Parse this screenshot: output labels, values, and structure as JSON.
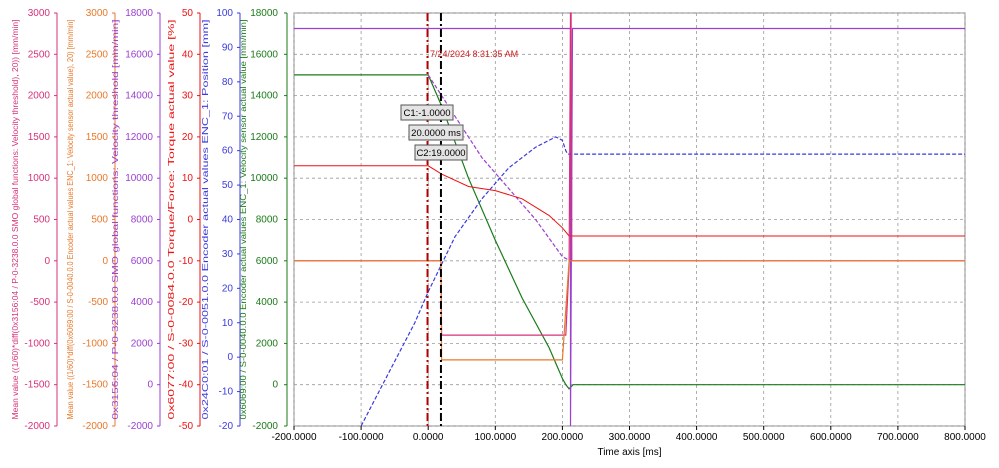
{
  "colors": {
    "pink": "#d6317a",
    "orange": "#e8782a",
    "purple": "#9b3fd0",
    "red": "#ee1111",
    "blue": "#3a3ae0",
    "green": "#1a7a1a",
    "cursor1": "#b00000",
    "cursor2": "#000000",
    "grid": "#9a9a9a",
    "timestamp": "#d02020"
  },
  "chart_data": {
    "type": "line",
    "xlabel": "Time axis [ms]",
    "xlim": [
      -200,
      800
    ],
    "xticks": [
      -200,
      -100,
      0,
      100,
      200,
      300,
      400,
      500,
      600,
      700,
      800
    ],
    "xtick_labels": [
      "-200.0000",
      "-100.0000",
      "0.0000",
      "100.0000",
      "200.0000",
      "300.0000",
      "400.0000",
      "500.0000",
      "600.0000",
      "700.0000",
      "800.0000"
    ],
    "axes": [
      {
        "id": "pink",
        "label": "Mean value ((1/60)*diff(0x3156:04 / P-0-3238.0.0 SMO global functions: Velocity threshold), 20)) [mm/min]",
        "min": -2000,
        "max": 3000,
        "ticks": [
          -2000,
          -1500,
          -1000,
          -500,
          0,
          500,
          1000,
          1500,
          2000,
          2500,
          3000
        ]
      },
      {
        "id": "orange",
        "label": "Mean value ((1/60)*diff(0x6069:00 / S-0-0040.0.0 Encoder actual values ENC_1: Velocity sensor actual value), 20) [mm/min]",
        "min": -2000,
        "max": 3000,
        "ticks": [
          -2000,
          -1500,
          -1000,
          -500,
          0,
          500,
          1000,
          1500,
          2000,
          2500,
          3000
        ]
      },
      {
        "id": "purple",
        "label": "0x3156:04 / P-0-3238.0.0 SMO global functions: Velocity threshold [mm/min]",
        "min": -2000,
        "max": 18000,
        "ticks": [
          -2000,
          0,
          2000,
          4000,
          6000,
          8000,
          10000,
          12000,
          14000,
          16000,
          18000
        ]
      },
      {
        "id": "red",
        "label": "0x6077:00 / S-0-0084.0.0 Torque/Force: Torque actual value [%]",
        "min": -50,
        "max": 50,
        "ticks": [
          -50,
          -40,
          -30,
          -20,
          -10,
          0,
          10,
          20,
          30,
          40,
          50
        ]
      },
      {
        "id": "blue",
        "label": "0x24C0:01 / S-0-0051.0.0 Encoder actual values ENC_1: Position [mm]",
        "min": -20,
        "max": 100,
        "ticks": [
          -20,
          -10,
          0,
          10,
          20,
          30,
          40,
          50,
          60,
          70,
          80,
          90,
          100
        ]
      },
      {
        "id": "green",
        "label": "0x6069:00 / S-0-0040.0.0 Encoder actual values ENC_1: Velocity sensor actual value [mm/min]",
        "min": -2000,
        "max": 18000,
        "ticks": [
          -2000,
          0,
          2000,
          4000,
          6000,
          8000,
          10000,
          12000,
          14000,
          16000,
          18000
        ]
      }
    ],
    "series": [
      {
        "axis": "green",
        "points": [
          [
            -200,
            15000
          ],
          [
            0,
            15000
          ],
          [
            20,
            13500
          ],
          [
            60,
            10000
          ],
          [
            100,
            7000
          ],
          [
            140,
            4200
          ],
          [
            180,
            1800
          ],
          [
            200,
            300
          ],
          [
            205,
            0
          ],
          [
            210,
            -200
          ],
          [
            216,
            0
          ],
          [
            800,
            0
          ]
        ]
      },
      {
        "axis": "purple",
        "points": [
          [
            -200,
            17250
          ],
          [
            212,
            17250
          ],
          [
            212,
            -2000
          ],
          [
            215,
            17250
          ],
          [
            800,
            17250
          ]
        ]
      },
      {
        "axis": "purple",
        "points": [
          [
            0,
            15000
          ],
          [
            40,
            13000
          ],
          [
            80,
            11000
          ],
          [
            120,
            9500
          ],
          [
            160,
            8000
          ],
          [
            200,
            6200
          ],
          [
            212,
            6000
          ]
        ]
      },
      {
        "axis": "blue",
        "points": [
          [
            -100,
            -20
          ],
          [
            -60,
            -5
          ],
          [
            -20,
            10
          ],
          [
            0,
            19
          ],
          [
            40,
            35
          ],
          [
            80,
            46
          ],
          [
            120,
            55
          ],
          [
            160,
            61
          ],
          [
            190,
            64
          ],
          [
            200,
            63
          ],
          [
            205,
            60
          ],
          [
            208,
            59
          ],
          [
            212,
            59
          ],
          [
            800,
            59
          ]
        ]
      },
      {
        "axis": "red",
        "points": [
          [
            -200,
            13
          ],
          [
            0,
            13
          ],
          [
            20,
            11
          ],
          [
            60,
            8
          ],
          [
            100,
            7
          ],
          [
            140,
            5
          ],
          [
            180,
            1
          ],
          [
            200,
            -2
          ],
          [
            210,
            -4
          ],
          [
            230,
            -4
          ],
          [
            800,
            -4
          ]
        ]
      },
      {
        "axis": "pink",
        "points": [
          [
            -200,
            0
          ],
          [
            19,
            0
          ],
          [
            20,
            -900
          ],
          [
            205,
            -900
          ],
          [
            210,
            -50
          ],
          [
            212,
            3000
          ],
          [
            213,
            3000
          ],
          [
            214,
            0
          ],
          [
            800,
            0
          ]
        ]
      },
      {
        "axis": "orange",
        "points": [
          [
            -200,
            0
          ],
          [
            19,
            0
          ],
          [
            20,
            -1200
          ],
          [
            200,
            -1200
          ],
          [
            210,
            0
          ],
          [
            230,
            0
          ],
          [
            800,
            0
          ]
        ]
      }
    ],
    "cursors": [
      {
        "name": "C1",
        "x": -1
      },
      {
        "name": "C2",
        "x": 19
      }
    ],
    "annotations": {
      "timestamp": "7/24/2024 8:31:35 AM",
      "c1_label": "C1:-1.0000",
      "delta_label": "20.0000 ms",
      "c2_label": "C2:19.0000"
    },
    "grid": true
  }
}
